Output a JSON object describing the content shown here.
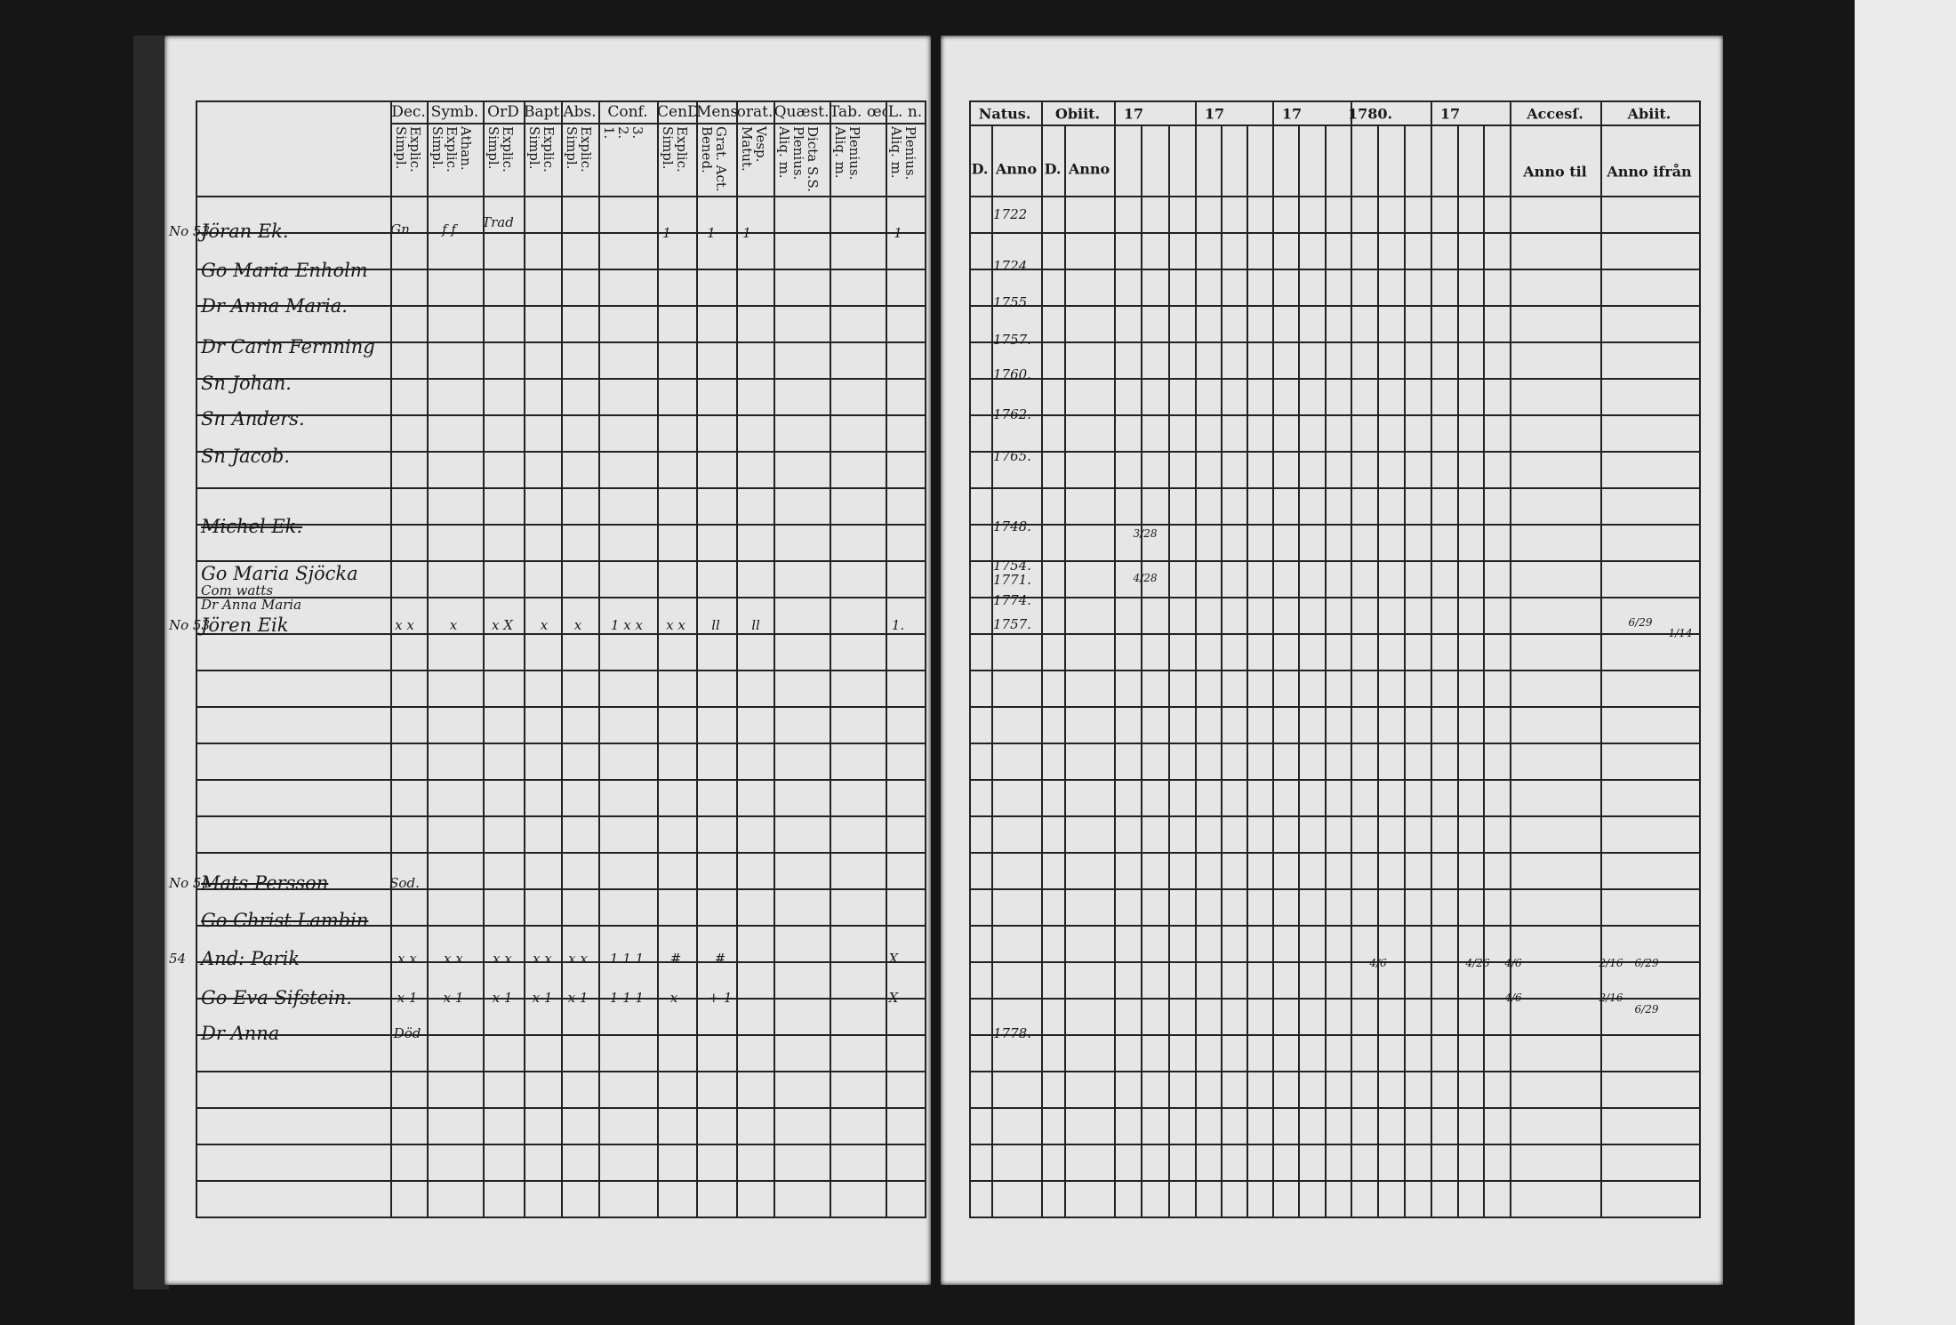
{
  "left_page": {
    "column_groups": [
      {
        "label": "Dec.",
        "sub": "Explic.\nSimpl."
      },
      {
        "label": "Symb.",
        "sub": "Athan.\nExplic.\nSimpl."
      },
      {
        "label": "OrD",
        "sub": "Explic.\nSimpl."
      },
      {
        "label": "Bapt.",
        "sub": "Explic.\nSimpl."
      },
      {
        "label": "Abs.",
        "sub": "Explic.\nSimpl."
      },
      {
        "label": "Conf.",
        "sub": "3.\n2.\n1."
      },
      {
        "label": "CenD",
        "sub": "Explic.\nSimpl."
      },
      {
        "label": "Mens",
        "sub": "Grat. Act.\nBened."
      },
      {
        "label": "orat.",
        "sub": "Vesp.\nMatut."
      },
      {
        "label": "Quæst.",
        "sub": "Dicta S.S.\nPlenius.\nAliq. m."
      },
      {
        "label": "Tab. œc.",
        "sub": "Plenius.\nAliq. m."
      },
      {
        "label": "L. n.",
        "sub": "Plenius.\nAliq. m."
      }
    ],
    "entries": [
      {
        "number": "No 53",
        "name": "Jöran Ek.",
        "struck": false
      },
      {
        "name": "Go Maria Enholm",
        "struck": false
      },
      {
        "name": "Dr Anna Maria.",
        "struck": false
      },
      {
        "name": "Dr Carin Fernning",
        "struck": false
      },
      {
        "name": "Sn Johan.",
        "struck": false
      },
      {
        "name": "Sn Anders.",
        "struck": false
      },
      {
        "name": "Sn Jacob.",
        "struck": false
      },
      {
        "name": "Michel Ek.",
        "struck": true
      },
      {
        "name": "Go Maria Sjöcka",
        "struck": false
      },
      {
        "name": "Com watts",
        "struck": false
      },
      {
        "name": "Dr Anna Maria",
        "struck": false
      },
      {
        "number": "No 53",
        "name": "Jören Eik",
        "struck": false
      },
      {
        "number": "No 54",
        "name": "Mats Persson",
        "struck": true
      },
      {
        "name": "Go Christ Lambin",
        "struck": true
      },
      {
        "number": "54",
        "name": "And: Parik",
        "struck": false
      },
      {
        "name": "Go Eva Sifstein.",
        "struck": false
      },
      {
        "name": "Dr Anna",
        "struck": false
      }
    ],
    "marks": [
      "Gn",
      "f f",
      "Trad",
      "1",
      "1",
      "1",
      "1",
      "x x",
      "x",
      "x X",
      "x",
      "x",
      "1 x x",
      "x x",
      "ll",
      "ll",
      "1.",
      "Sod.",
      "x x",
      "x x",
      "x x",
      "x x",
      "x x",
      "1 1 1",
      "#",
      "#",
      "X",
      "x 1",
      "x 1",
      "x 1",
      "x 1",
      "x 1",
      "1 1 1",
      "x",
      "+ 1",
      "X",
      "Död"
    ]
  },
  "right_page": {
    "headers": {
      "natus": "Natus.",
      "obiit": "Obiit.",
      "years": [
        "17",
        "17",
        "17",
        "1780.",
        "17"
      ],
      "accessit": "Accesſ.",
      "abiit": "Abiit.",
      "d1": "D.",
      "anno1": "Anno",
      "d2": "D.",
      "anno2": "Anno",
      "accessit_sub": "Anno til",
      "abiit_sub": "Anno ifrån"
    },
    "birth_years": [
      "1722",
      "1724.",
      "1755.",
      "1757.",
      "1760.",
      "1762.",
      "1765.",
      "1748.",
      "1754.",
      "1771.",
      "1774.",
      "1757.",
      "1778."
    ],
    "marks": [
      "3/28",
      "4/28",
      "6/29",
      "1/14",
      "4/6",
      "4/26",
      "4/6",
      "4/6",
      "2/16",
      "6/29",
      "2/16",
      "6/29"
    ]
  }
}
